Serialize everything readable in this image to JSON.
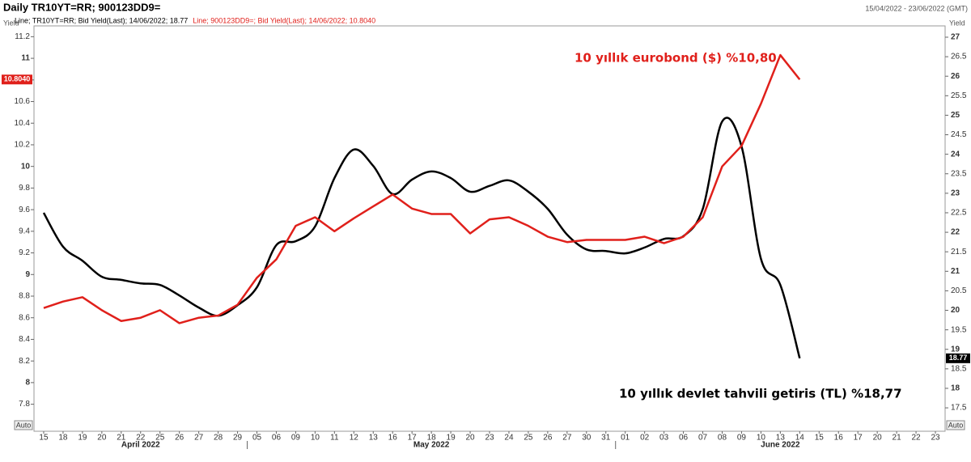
{
  "chart_data": {
    "type": "line",
    "title": "Daily TR10YT=RR; 900123DD9=",
    "date_range": "15/04/2022 - 23/06/2022 (GMT)",
    "y_label": "Yield",
    "y2_label": "Yield",
    "auto_label": "Auto",
    "categories": [
      "15",
      "18",
      "19",
      "20",
      "21",
      "22",
      "25",
      "26",
      "27",
      "28",
      "29",
      "05",
      "06",
      "09",
      "10",
      "11",
      "12",
      "13",
      "16",
      "17",
      "18",
      "19",
      "20",
      "23",
      "24",
      "25",
      "26",
      "27",
      "30",
      "31",
      "01",
      "02",
      "03",
      "06",
      "07",
      "08",
      "09",
      "10",
      "13",
      "14",
      "15",
      "16",
      "17",
      "20",
      "21",
      "22",
      "23"
    ],
    "months": [
      "April 2022",
      "May 2022",
      "June 2022"
    ],
    "ylim": [
      7.55,
      11.3
    ],
    "yticks": [
      7.8,
      8,
      8.2,
      8.4,
      8.6,
      8.8,
      9,
      9.2,
      9.4,
      9.6,
      9.8,
      10,
      10.2,
      10.4,
      10.6,
      10.8,
      11,
      11.2
    ],
    "y2lim": [
      16.9,
      27.29
    ],
    "y2ticks": [
      17.5,
      18,
      18.5,
      19,
      19.5,
      20,
      20.5,
      21,
      21.5,
      22,
      22.5,
      23,
      23.5,
      24,
      24.5,
      25,
      25.5,
      26,
      26.5,
      27
    ],
    "grid": false,
    "series": [
      {
        "name": "Line; TR10YT=RR; Bid Yield(Last); 14/06/2022; 18.77",
        "color": "#000000",
        "axis": "y2",
        "smooth": true,
        "last_label": "18.77",
        "annotation": "10 yıllık devlet tahvili getiris (TL) %18,77",
        "values": [
          22.5,
          21.63,
          21.27,
          20.86,
          20.78,
          20.69,
          20.65,
          20.38,
          20.07,
          19.86,
          20.13,
          20.59,
          21.67,
          21.77,
          22.15,
          23.39,
          24.12,
          23.7,
          22.98,
          23.35,
          23.56,
          23.39,
          23.04,
          23.19,
          23.33,
          23.04,
          22.6,
          21.94,
          21.56,
          21.52,
          21.46,
          21.61,
          21.83,
          21.9,
          22.6,
          24.84,
          24.2,
          21.32,
          20.65,
          18.77,
          null,
          null,
          null,
          null,
          null,
          null,
          null
        ]
      },
      {
        "name": "Line; 900123DD9=; Bid Yield(Last); 14/06/2022; 10.8040",
        "color": "#e0201b",
        "axis": "y",
        "smooth": false,
        "last_label": "10.8040",
        "annotation": "10 yıllık eurobond ($) %10,80",
        "values": [
          8.69,
          8.75,
          8.79,
          8.67,
          8.57,
          8.6,
          8.67,
          8.55,
          8.6,
          8.62,
          8.72,
          8.97,
          9.14,
          9.45,
          9.53,
          9.4,
          9.52,
          9.63,
          9.74,
          9.61,
          9.56,
          9.56,
          9.38,
          9.51,
          9.53,
          9.45,
          9.35,
          9.3,
          9.32,
          9.32,
          9.32,
          9.35,
          9.29,
          9.35,
          9.53,
          10.0,
          10.19,
          10.58,
          11.03,
          10.804,
          null,
          null,
          null,
          null,
          null,
          null,
          null
        ]
      }
    ]
  }
}
